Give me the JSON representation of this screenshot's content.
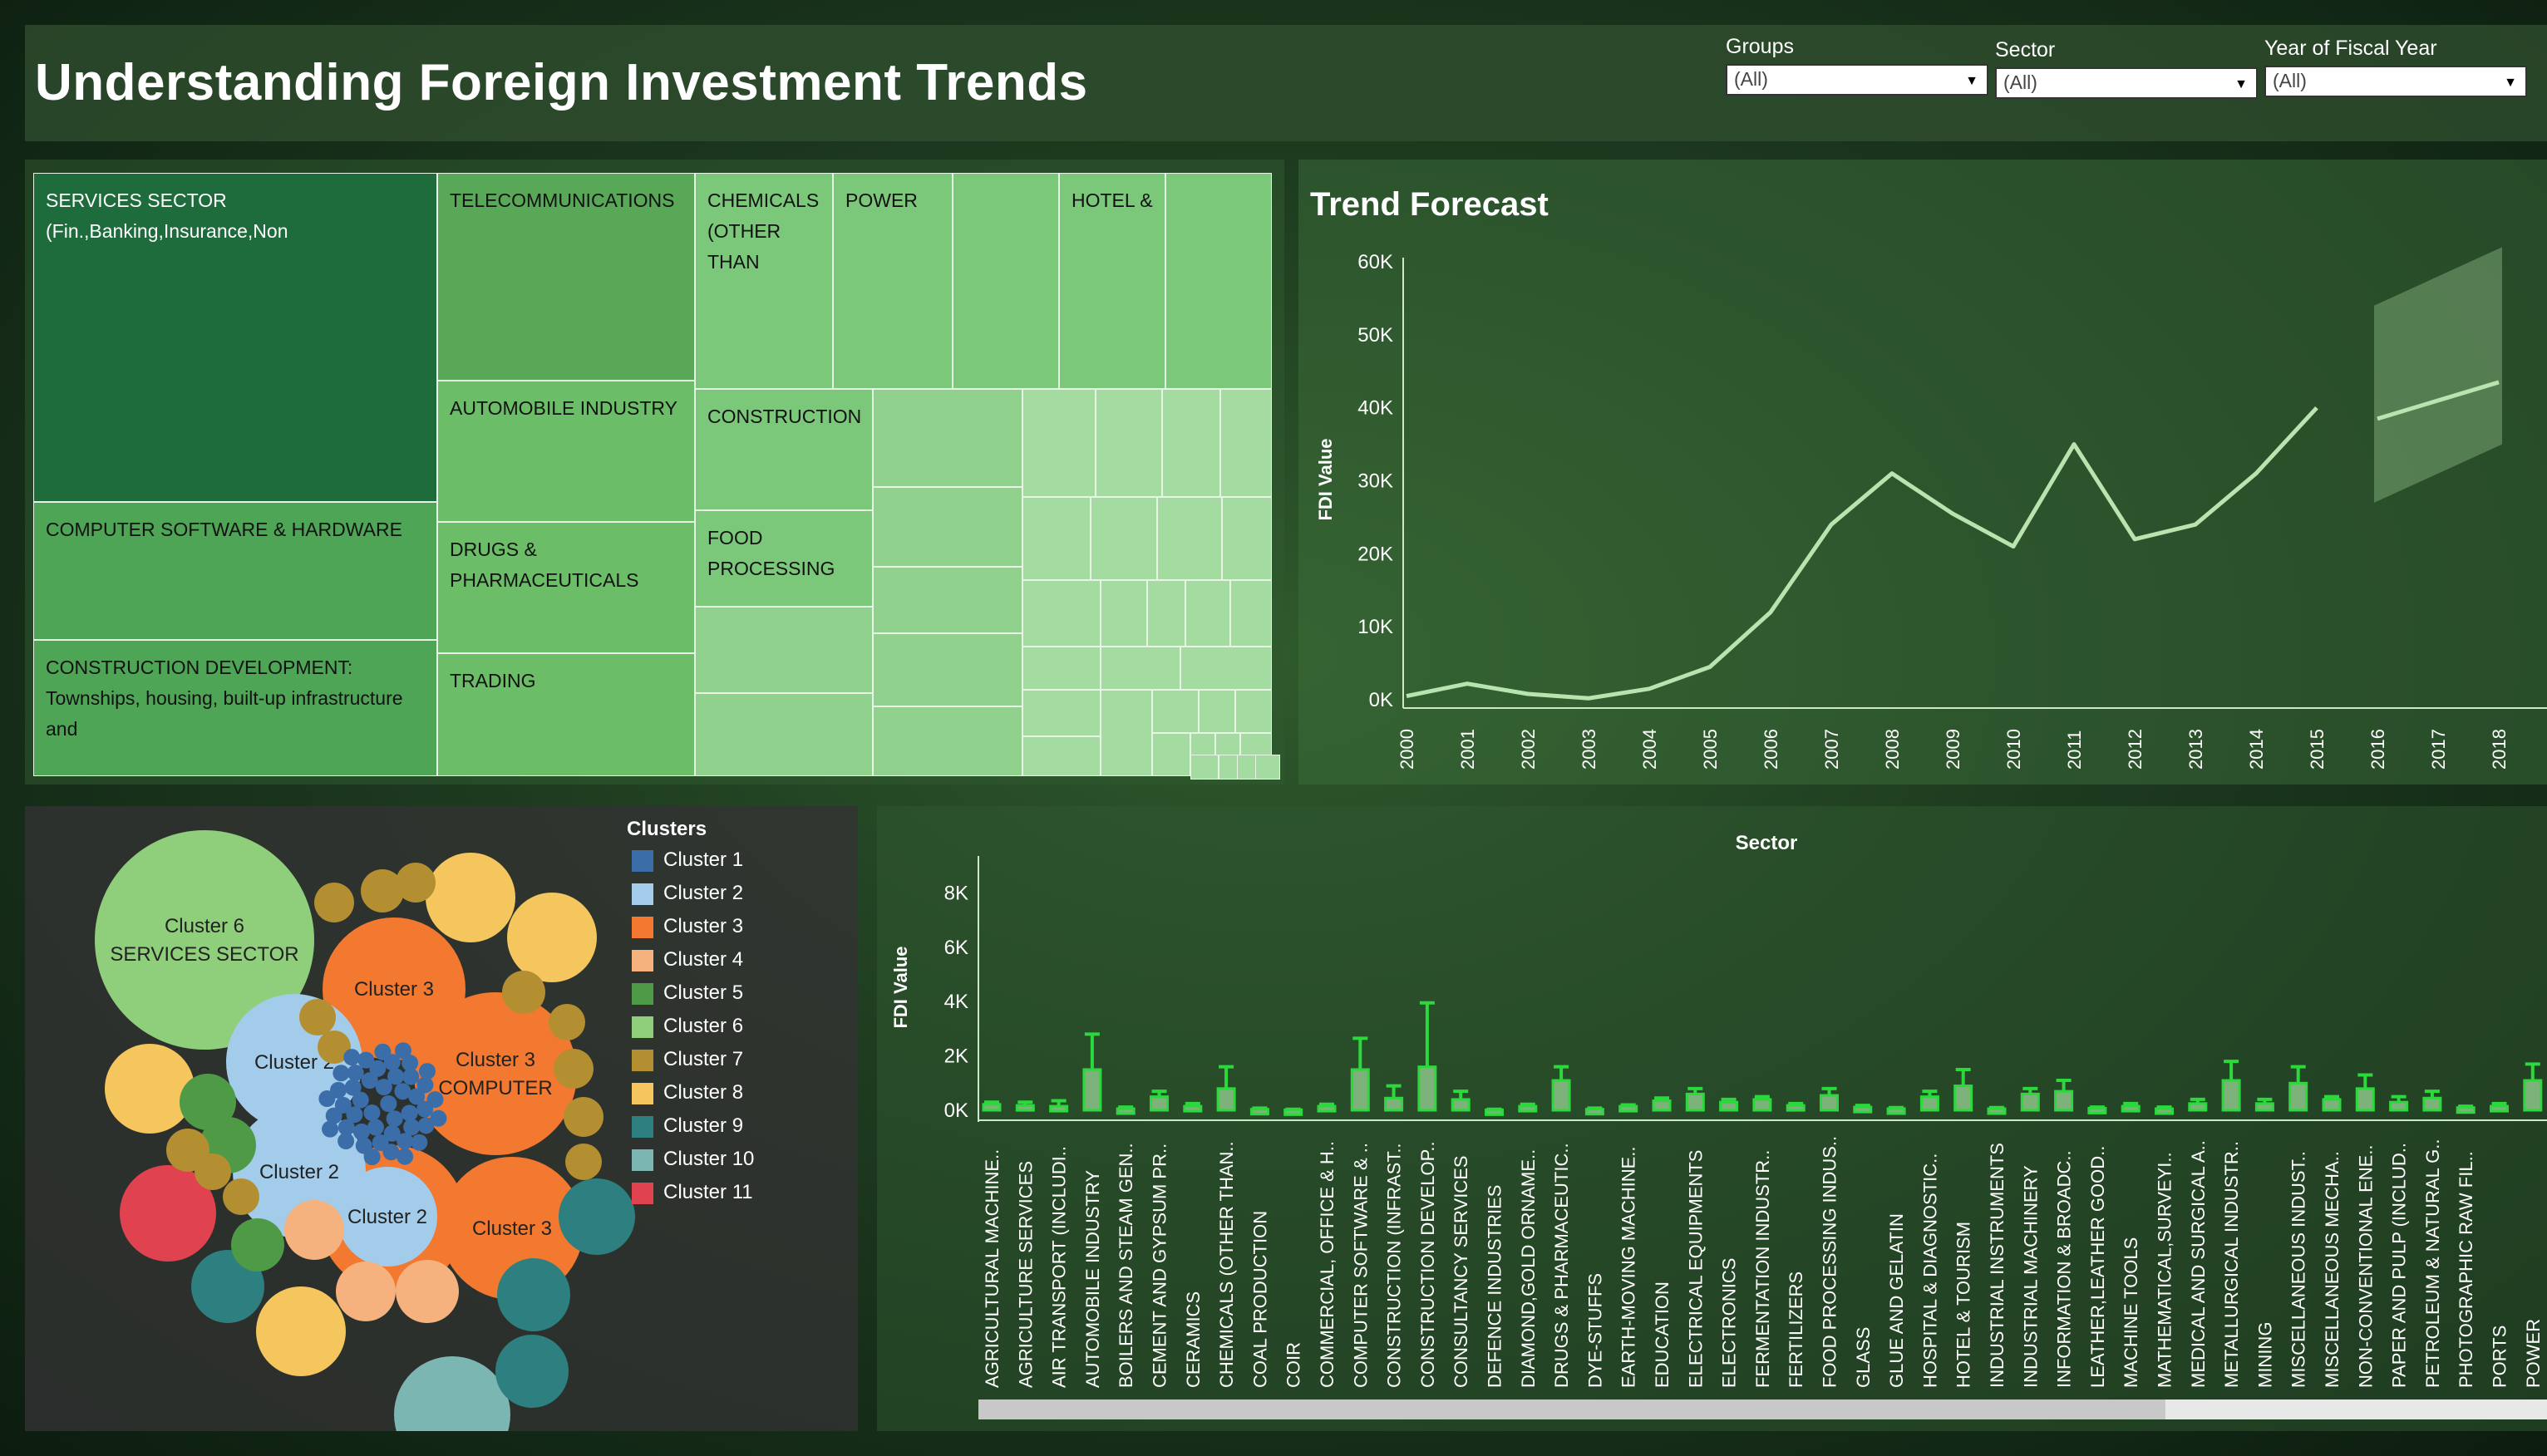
{
  "header": {
    "title": "Understanding Foreign Investment Trends",
    "filters": [
      {
        "label": "Groups",
        "value": "(All)"
      },
      {
        "label": "Sector",
        "value": "(All)"
      },
      {
        "label": "Year of Fiscal Year",
        "value": "(All)"
      }
    ]
  },
  "treemap": {
    "labels": {
      "services": "SERVICES SECTOR (Fin.,Banking,Insurance,Non",
      "computer": "COMPUTER SOFTWARE & HARDWARE",
      "construction_dev": "CONSTRUCTION DEVELOPMENT: Townships, housing, built-up infrastructure and",
      "telecom": "TELECOMMUNICATIONS",
      "automobile": "AUTOMOBILE INDUSTRY",
      "drugs": "DRUGS & PHARMACEUTICALS",
      "trading": "TRADING",
      "chemicals": "CHEMICALS (OTHER THAN",
      "power": "POWER",
      "hotel": "HOTEL &",
      "construction": "CONSTRUCTION",
      "food": "FOOD PROCESSING"
    },
    "colors": {
      "dark": "#1e6b3c",
      "mid": "#4ea556",
      "light": "#7bc87a",
      "pale": "#a3dba0"
    }
  },
  "trend": {
    "title": "Trend Forecast",
    "ylabel": "FDI Value"
  },
  "chart_data": [
    {
      "type": "line",
      "title": "Trend Forecast",
      "ylabel": "FDI Value",
      "y_ticks": [
        "0K",
        "10K",
        "20K",
        "30K",
        "40K",
        "50K",
        "60K"
      ],
      "ylim": [
        0,
        60000
      ],
      "x": [
        "2000",
        "2001",
        "2002",
        "2003",
        "2004",
        "2005",
        "2006",
        "2007",
        "2008",
        "2009",
        "2010",
        "2011",
        "2012",
        "2013",
        "2014",
        "2015",
        "2016",
        "2017",
        "2018"
      ],
      "series": [
        {
          "values": [
            500,
            2200,
            800,
            200,
            1500,
            4500,
            12000,
            24000,
            31000,
            25500,
            21000,
            35000,
            22000,
            24000,
            31000,
            40000,
            null,
            null,
            null
          ]
        },
        {
          "values": [
            null,
            null,
            null,
            null,
            null,
            null,
            null,
            null,
            null,
            null,
            null,
            null,
            null,
            null,
            null,
            null,
            38500,
            41000,
            43500
          ]
        }
      ],
      "forecast_band": {
        "x": [
          "2016",
          "2018"
        ],
        "lower_start": 27000,
        "upper_start": 54000,
        "lower_end": 35000,
        "upper_end": 62000
      },
      "grid": false
    },
    {
      "type": "bar",
      "title": "Sector",
      "ylabel": "FDI Value",
      "y_ticks": [
        "0K",
        "2K",
        "4K",
        "6K",
        "8K"
      ],
      "ylim": [
        0,
        8500
      ],
      "categories": [
        "AGRICULTURAL MACHINE..",
        "AGRICULTURE SERVICES",
        "AIR TRANSPORT (INCLUDI..",
        "AUTOMOBILE INDUSTRY",
        "BOILERS AND STEAM GEN..",
        "CEMENT AND GYPSUM PR..",
        "CERAMICS",
        "CHEMICALS (OTHER THAN..",
        "COAL PRODUCTION",
        "COIR",
        "COMMERCIAL, OFFICE & H..",
        "COMPUTER SOFTWARE & ..",
        "CONSTRUCTION (INFRAST..",
        "CONSTRUCTION DEVELOP..",
        "CONSULTANCY SERVICES",
        "DEFENCE INDUSTRIES",
        "DIAMOND,GOLD ORNAME..",
        "DRUGS & PHARMACEUTIC..",
        "DYE-STUFFS",
        "EARTH-MOVING MACHINE..",
        "EDUCATION",
        "ELECTRICAL EQUIPMENTS",
        "ELECTRONICS",
        "FERMENTATION INDUSTR..",
        "FERTILIZERS",
        "FOOD PROCESSING INDUS..",
        "GLASS",
        "GLUE AND GELATIN",
        "HOSPITAL & DIAGNOSTIC..",
        "HOTEL & TOURISM",
        "INDUSTRIAL INSTRUMENTS",
        "INDUSTRIAL MACHINERY",
        "INFORMATION & BROADC..",
        "LEATHER,LEATHER GOOD..",
        "MACHINE TOOLS",
        "MATHEMATICAL,SURVEYI..",
        "MEDICAL AND SURGICAL A..",
        "METALLURGICAL INDUSTR..",
        "MINING",
        "MISCELLANEOUS INDUST..",
        "MISCELLANEOUS MECHA..",
        "NON-CONVENTIONAL ENE..",
        "PAPER AND PULP (INCLUD..",
        "PETROLEUM & NATURAL G..",
        "PHOTOGRAPHIC RAW FIL..",
        "PORTS",
        "POWER"
      ],
      "values": [
        220,
        180,
        150,
        1500,
        60,
        500,
        150,
        800,
        40,
        20,
        150,
        1500,
        450,
        1600,
        400,
        20,
        150,
        1100,
        40,
        150,
        350,
        600,
        300,
        400,
        180,
        550,
        120,
        60,
        500,
        900,
        60,
        600,
        700,
        80,
        150,
        60,
        250,
        1100,
        250,
        1000,
        400,
        800,
        300,
        450,
        100,
        150,
        1100
      ],
      "whisker_high": [
        300,
        300,
        350,
        2800,
        120,
        700,
        250,
        1600,
        80,
        40,
        220,
        2650,
        900,
        3950,
        700,
        40,
        220,
        1600,
        80,
        200,
        450,
        800,
        400,
        500,
        250,
        800,
        180,
        100,
        700,
        1500,
        100,
        800,
        1100,
        120,
        250,
        120,
        400,
        1800,
        400,
        1600,
        500,
        1300,
        500,
        700,
        150,
        250,
        1700
      ]
    }
  ],
  "clusters": {
    "legend_title": "Clusters",
    "legend": [
      {
        "name": "Cluster 1",
        "color": "#3b6ea8"
      },
      {
        "name": "Cluster 2",
        "color": "#a2cce9"
      },
      {
        "name": "Cluster 3",
        "color": "#f2792f"
      },
      {
        "name": "Cluster 4",
        "color": "#f6b27e"
      },
      {
        "name": "Cluster 5",
        "color": "#4e9a46"
      },
      {
        "name": "Cluster 6",
        "color": "#8fcf7c"
      },
      {
        "name": "Cluster 7",
        "color": "#b38f32"
      },
      {
        "name": "Cluster 8",
        "color": "#f4c65d"
      },
      {
        "name": "Cluster 9",
        "color": "#2e8080"
      },
      {
        "name": "Cluster 10",
        "color": "#7cb6b2"
      },
      {
        "name": "Cluster 11",
        "color": "#e0434f"
      }
    ],
    "bubble_labels": {
      "c6": [
        "Cluster 6",
        "SERVICES SECTOR"
      ],
      "c3a": "Cluster 3",
      "c2a": "Cluster 2",
      "c3b": [
        "Cluster 3",
        "COMPUTER"
      ],
      "c2b": "Cluster 2",
      "c2c": "Cluster 2",
      "c3c": "Cluster 3"
    }
  }
}
